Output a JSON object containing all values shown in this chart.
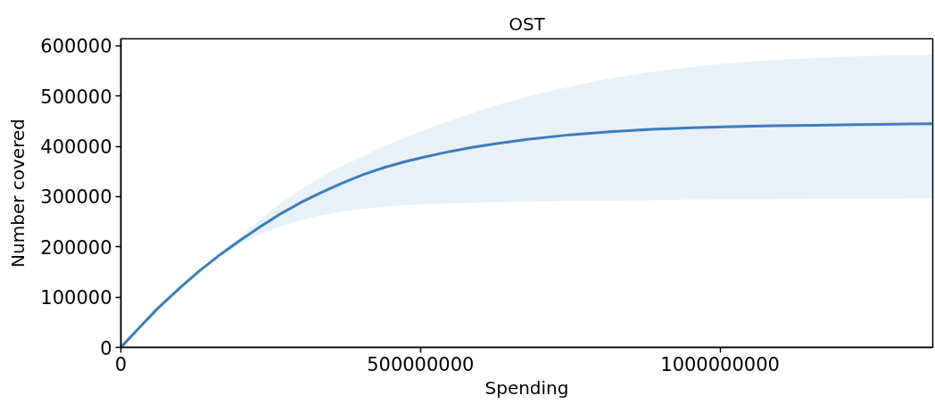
{
  "chart_data": {
    "type": "line",
    "title": "OST",
    "xlabel": "Spending",
    "ylabel": "Number covered",
    "x": [
      0,
      30000000,
      61000000,
      100000000,
      130000000,
      164000000,
      199000000,
      230000000,
      267000000,
      300000000,
      336000000,
      370000000,
      405000000,
      440000000,
      473000000,
      507000000,
      542000000,
      586000000,
      630000000,
      679000000,
      750000000,
      816000000,
      885000000,
      954000000,
      1020000000,
      1091000000,
      1160000000,
      1228000000,
      1290000000,
      1355000000
    ],
    "series": [
      {
        "color": "#3b7dbd",
        "values": [
          0,
          38000,
          77000,
          120000,
          151000,
          183000,
          213000,
          238000,
          266000,
          288000,
          309000,
          327000,
          344000,
          358000,
          369000,
          379000,
          388000,
          398000,
          406000,
          414000,
          423000,
          429000,
          434000,
          437000,
          439000,
          441000,
          442000,
          443000,
          444000,
          445000
        ],
        "upper": [
          0,
          38000,
          77000,
          120000,
          151000,
          185000,
          220000,
          252000,
          287000,
          314000,
          340000,
          361000,
          381000,
          400000,
          417000,
          433000,
          448000,
          466000,
          483000,
          499000,
          519000,
          535000,
          548000,
          558000,
          566000,
          572000,
          576000,
          579000,
          581000,
          582000
        ],
        "lower": [
          0,
          38000,
          77000,
          120000,
          151000,
          180000,
          205000,
          224000,
          241000,
          253000,
          263000,
          270000,
          276000,
          280000,
          283000,
          285000,
          286000,
          288000,
          289000,
          290000,
          291000,
          292000,
          293000,
          294000,
          295000,
          295000,
          296000,
          296000,
          296000,
          297000
        ]
      }
    ],
    "xlim": [
      0,
      1355000000
    ],
    "ylim": [
      0,
      614000
    ],
    "xticks": [
      0,
      500000000,
      1000000000
    ],
    "yticks": [
      0,
      100000,
      200000,
      300000,
      400000,
      500000,
      600000
    ]
  }
}
